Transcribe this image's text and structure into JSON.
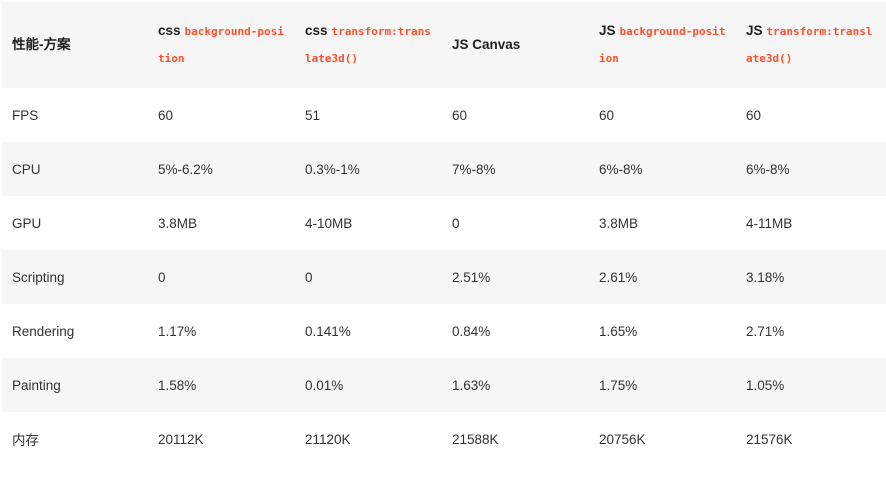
{
  "table": {
    "corner": "性能-方案",
    "columns": [
      {
        "prefix": "css",
        "code": "background-position"
      },
      {
        "prefix": "css",
        "code": "transform:translate3d()"
      },
      {
        "label": "JS Canvas"
      },
      {
        "prefix": "JS",
        "code": "background-position"
      },
      {
        "prefix": "JS",
        "code": "transform:translate3d()"
      }
    ],
    "rows": [
      {
        "metric": "FPS",
        "values": [
          "60",
          "51",
          "60",
          "60",
          "60"
        ]
      },
      {
        "metric": "CPU",
        "values": [
          "5%-6.2%",
          "0.3%-1%",
          "7%-8%",
          "6%-8%",
          "6%-8%"
        ]
      },
      {
        "metric": "GPU",
        "values": [
          "3.8MB",
          "4-10MB",
          "0",
          "3.8MB",
          "4-11MB"
        ]
      },
      {
        "metric": "Scripting",
        "values": [
          "0",
          "0",
          "2.51%",
          "2.61%",
          "3.18%"
        ]
      },
      {
        "metric": "Rendering",
        "values": [
          "1.17%",
          "0.141%",
          "0.84%",
          "1.65%",
          "2.71%"
        ]
      },
      {
        "metric": "Painting",
        "values": [
          "1.58%",
          "0.01%",
          "1.63%",
          "1.75%",
          "1.05%"
        ]
      },
      {
        "metric": "内存",
        "values": [
          "20112K",
          "21120K",
          "21588K",
          "20756K",
          "21576K"
        ]
      }
    ]
  }
}
